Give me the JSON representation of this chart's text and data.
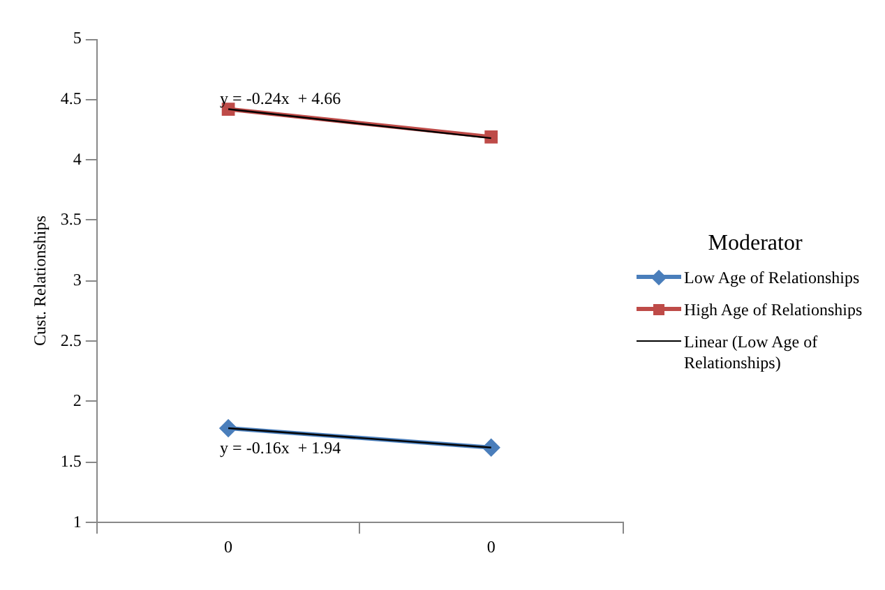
{
  "chart_data": {
    "type": "line",
    "ylabel": "Cust. Relationships",
    "legend_title": "Moderator",
    "categories": [
      "0",
      "0"
    ],
    "series": [
      {
        "name": "Low Age of Relationships",
        "color": "#4a7ebb",
        "values": [
          1.78,
          1.62
        ],
        "marker": "diamond"
      },
      {
        "name": "High Age of Relationships",
        "color": "#be4b48",
        "values": [
          4.42,
          4.19
        ],
        "marker": "square"
      },
      {
        "name": "Linear (Low Age of Relationships)",
        "color": "#000000",
        "values": [
          1.78,
          1.62
        ],
        "marker": "none"
      },
      {
        "color": "#000000",
        "values": [
          4.42,
          4.18
        ],
        "marker": "none"
      }
    ],
    "annotations": [
      "y = -0.24x  + 4.66",
      "y = -0.16x  + 1.94"
    ],
    "ylim": [
      1,
      5
    ],
    "yticks": [
      1,
      1.5,
      2,
      2.5,
      3,
      3.5,
      4,
      4.5,
      5
    ],
    "grid": false,
    "legend": "right",
    "line_style": "solid"
  }
}
